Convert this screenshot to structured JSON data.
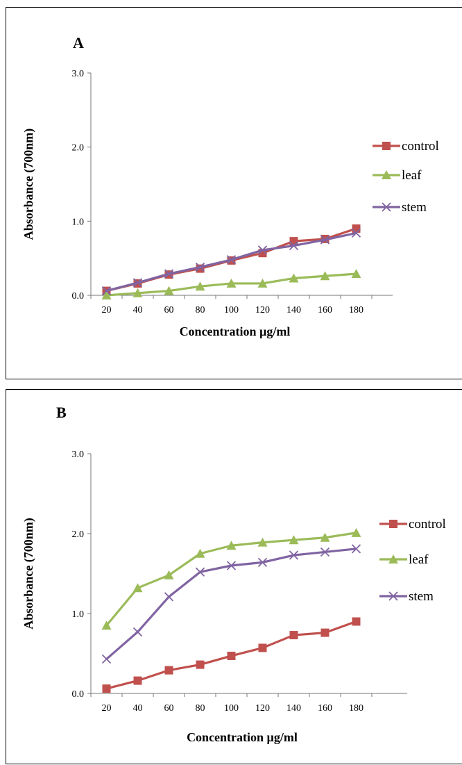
{
  "chart_data": [
    {
      "type": "line",
      "panel_label": "A",
      "xlabel": "Concentration µg/ml",
      "ylabel": "Absorbance (700nm)",
      "categories": [
        "20",
        "40",
        "60",
        "80",
        "100",
        "120",
        "140",
        "160",
        "180"
      ],
      "y_ticks": [
        "0.0",
        "1.0",
        "2.0",
        "3.0"
      ],
      "ylim": [
        0,
        3
      ],
      "legend_position": "right",
      "series": [
        {
          "name": "control",
          "color": "#c0504d",
          "marker": "square",
          "values": [
            0.06,
            0.16,
            0.28,
            0.36,
            0.47,
            0.57,
            0.73,
            0.76,
            0.9
          ]
        },
        {
          "name": "leaf",
          "color": "#9bbb59",
          "marker": "triangle",
          "values": [
            0.0,
            0.03,
            0.06,
            0.12,
            0.16,
            0.16,
            0.23,
            0.26,
            0.29
          ]
        },
        {
          "name": "stem",
          "color": "#8064a2",
          "marker": "x",
          "values": [
            0.06,
            0.17,
            0.29,
            0.38,
            0.48,
            0.61,
            0.67,
            0.75,
            0.84
          ]
        }
      ]
    },
    {
      "type": "line",
      "panel_label": "B",
      "xlabel": "Concentration µg/ml",
      "ylabel": "Absorbance (700nm)",
      "categories": [
        "20",
        "40",
        "60",
        "80",
        "100",
        "120",
        "140",
        "160",
        "180"
      ],
      "y_ticks": [
        "0.0",
        "1.0",
        "2.0",
        "3.0"
      ],
      "ylim": [
        0,
        3
      ],
      "legend_position": "right",
      "series": [
        {
          "name": "control",
          "color": "#c0504d",
          "marker": "square",
          "values": [
            0.06,
            0.16,
            0.29,
            0.36,
            0.47,
            0.57,
            0.73,
            0.76,
            0.9
          ]
        },
        {
          "name": "leaf",
          "color": "#9bbb59",
          "marker": "triangle",
          "values": [
            0.85,
            1.32,
            1.48,
            1.75,
            1.85,
            1.89,
            1.92,
            1.95,
            2.01
          ]
        },
        {
          "name": "stem",
          "color": "#8064a2",
          "marker": "x",
          "values": [
            0.43,
            0.77,
            1.21,
            1.52,
            1.6,
            1.64,
            1.73,
            1.77,
            1.81
          ]
        }
      ]
    }
  ]
}
